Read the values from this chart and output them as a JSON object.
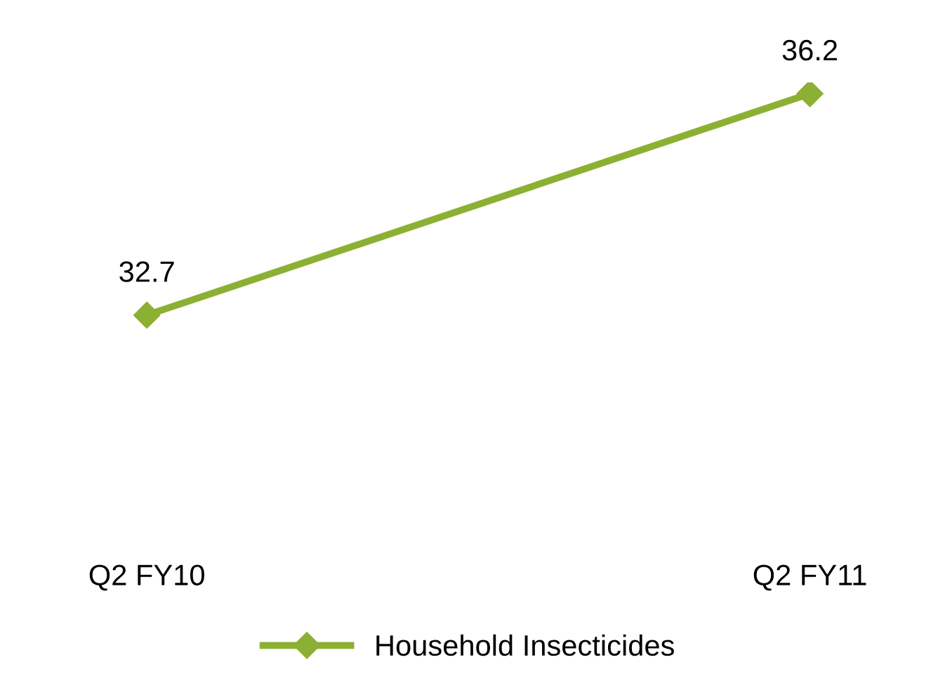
{
  "chart_data": {
    "type": "line",
    "categories": [
      "Q2 FY10",
      "Q2 FY11"
    ],
    "series": [
      {
        "name": "Household Insecticides",
        "color": "#8cb033",
        "values": [
          32.7,
          36.2
        ]
      }
    ],
    "data_labels": true,
    "marker": "diamond",
    "legend": "bottom",
    "tick_labels": "x",
    "grid": false
  }
}
